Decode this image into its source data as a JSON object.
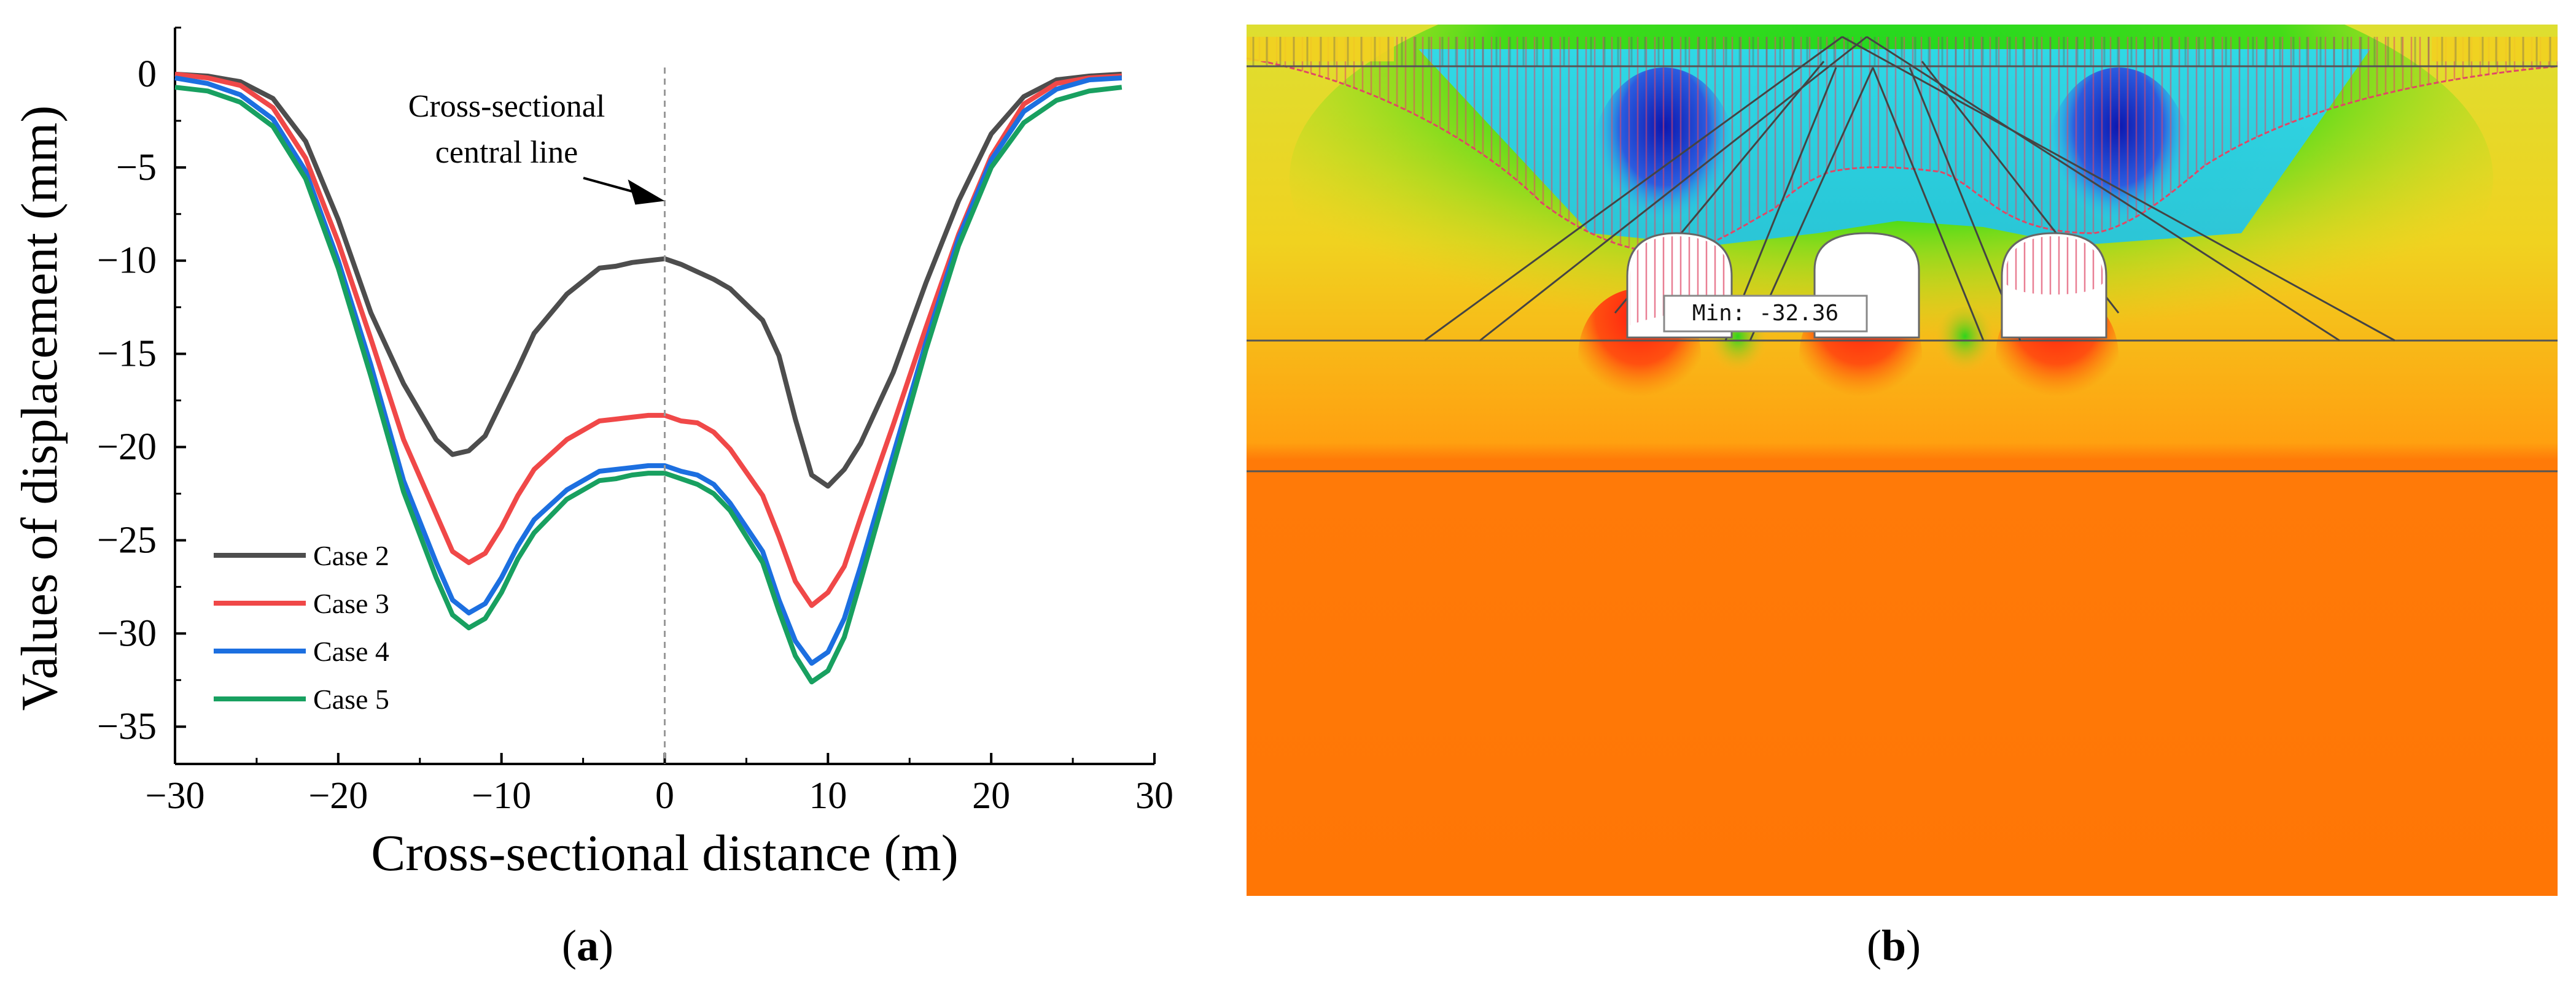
{
  "chart_data": {
    "type": "line",
    "title": "",
    "xlabel": "Cross-sectional distance (m)",
    "ylabel": "Values of displacement (mm)",
    "xlim": [
      -30,
      30
    ],
    "ylim": [
      -37,
      2.5
    ],
    "xticks": [
      -30,
      -20,
      -10,
      0,
      10,
      20,
      30
    ],
    "yticks": [
      0,
      -5,
      -10,
      -15,
      -20,
      -25,
      -30,
      -35
    ],
    "grid": false,
    "legend_position": "bottom-left",
    "annotation": {
      "text_line1": "Cross-sectional",
      "text_line2": "central line",
      "arrow_target": {
        "x": 0,
        "y": -6.8
      },
      "central_line_x": 0
    },
    "series": [
      {
        "name": "Case 2",
        "color": "#4d4d4d",
        "x": [
          -30,
          -28,
          -26,
          -24,
          -22,
          -20,
          -18,
          -16,
          -14,
          -13,
          -12,
          -11,
          -10,
          -9,
          -8,
          -6,
          -4,
          -3,
          -2,
          -1,
          0,
          1,
          2,
          3,
          4,
          6,
          7,
          8,
          9,
          10,
          11,
          12,
          14,
          16,
          18,
          20,
          22,
          24,
          26,
          28
        ],
        "y": [
          0,
          -0.1,
          -0.4,
          -1.3,
          -3.6,
          -7.8,
          -12.8,
          -16.6,
          -19.6,
          -20.4,
          -20.2,
          -19.4,
          -17.6,
          -15.8,
          -13.9,
          -11.8,
          -10.4,
          -10.3,
          -10.1,
          -10.0,
          -9.9,
          -10.2,
          -10.6,
          -11.0,
          -11.5,
          -13.2,
          -15.1,
          -18.5,
          -21.5,
          -22.1,
          -21.2,
          -19.8,
          -16.0,
          -11.2,
          -6.8,
          -3.2,
          -1.2,
          -0.3,
          -0.1,
          0
        ]
      },
      {
        "name": "Case 3",
        "color": "#f04848",
        "x": [
          -30,
          -28,
          -26,
          -24,
          -22,
          -20,
          -18,
          -16,
          -14,
          -13,
          -12,
          -11,
          -10,
          -9,
          -8,
          -6,
          -4,
          -3,
          -2,
          -1,
          0,
          1,
          2,
          3,
          4,
          6,
          7,
          8,
          9,
          10,
          11,
          12,
          14,
          16,
          18,
          20,
          22,
          24,
          26,
          28
        ],
        "y": [
          0,
          -0.2,
          -0.6,
          -1.8,
          -4.5,
          -9.0,
          -14.2,
          -19.6,
          -23.6,
          -25.6,
          -26.2,
          -25.7,
          -24.3,
          -22.6,
          -21.2,
          -19.6,
          -18.6,
          -18.5,
          -18.4,
          -18.3,
          -18.3,
          -18.6,
          -18.7,
          -19.2,
          -20.1,
          -22.6,
          -24.8,
          -27.2,
          -28.5,
          -27.8,
          -26.4,
          -23.8,
          -18.8,
          -13.6,
          -8.6,
          -4.4,
          -1.6,
          -0.5,
          -0.2,
          -0.1
        ]
      },
      {
        "name": "Case 4",
        "color": "#1c6fe0",
        "x": [
          -30,
          -28,
          -26,
          -24,
          -22,
          -20,
          -18,
          -16,
          -14,
          -13,
          -12,
          -11,
          -10,
          -9,
          -8,
          -6,
          -4,
          -3,
          -2,
          -1,
          0,
          1,
          2,
          3,
          4,
          6,
          7,
          8,
          9,
          10,
          11,
          12,
          14,
          16,
          18,
          20,
          22,
          24,
          26,
          28
        ],
        "y": [
          -0.2,
          -0.5,
          -1.1,
          -2.4,
          -5.2,
          -10.0,
          -15.6,
          -21.8,
          -26.2,
          -28.2,
          -28.9,
          -28.4,
          -27.0,
          -25.3,
          -23.9,
          -22.3,
          -21.3,
          -21.2,
          -21.1,
          -21.0,
          -21.0,
          -21.3,
          -21.5,
          -22.0,
          -23.0,
          -25.6,
          -28.2,
          -30.4,
          -31.6,
          -31.0,
          -29.2,
          -26.4,
          -20.4,
          -14.4,
          -8.8,
          -4.6,
          -2.0,
          -0.8,
          -0.3,
          -0.2
        ]
      },
      {
        "name": "Case 5",
        "color": "#18a060",
        "x": [
          -30,
          -28,
          -26,
          -24,
          -22,
          -20,
          -18,
          -16,
          -14,
          -13,
          -12,
          -11,
          -10,
          -9,
          -8,
          -6,
          -4,
          -3,
          -2,
          -1,
          0,
          1,
          2,
          3,
          4,
          6,
          7,
          8,
          9,
          10,
          11,
          12,
          14,
          16,
          18,
          20,
          22,
          24,
          26,
          28
        ],
        "y": [
          -0.7,
          -0.9,
          -1.5,
          -2.8,
          -5.6,
          -10.4,
          -16.2,
          -22.4,
          -27.0,
          -29.0,
          -29.7,
          -29.2,
          -27.8,
          -26.0,
          -24.6,
          -22.8,
          -21.8,
          -21.7,
          -21.5,
          -21.4,
          -21.4,
          -21.7,
          -22.0,
          -22.5,
          -23.4,
          -26.2,
          -28.8,
          -31.2,
          -32.6,
          -32.0,
          -30.2,
          -27.2,
          -21.0,
          -14.8,
          -9.2,
          -5.0,
          -2.6,
          -1.4,
          -0.9,
          -0.7
        ]
      }
    ]
  },
  "panel_b": {
    "min_label": "Min: -32.36",
    "colors": {
      "far_field": "#ff7a08",
      "near_zero": "#f4d21a",
      "mid": "#33d820",
      "high": "#28d0e8",
      "max": "#1522c8",
      "tunnel": "#ff2010",
      "hatch": "#e04866"
    }
  },
  "panel_labels": {
    "a": "a",
    "b": "b"
  }
}
